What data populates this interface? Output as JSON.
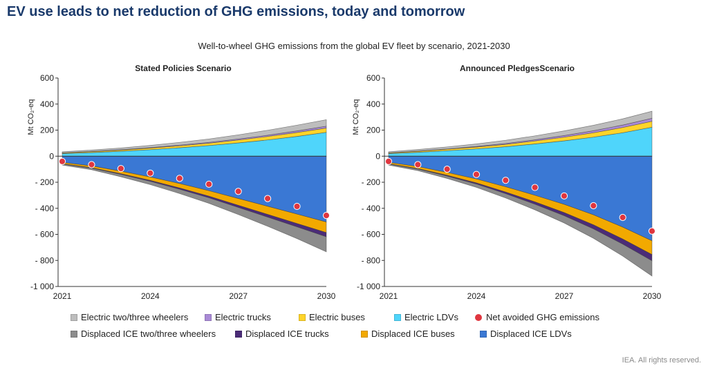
{
  "page": {
    "title": "EV use leads to net reduction of GHG emissions, today and tomorrow",
    "subtitle": "Well-to-wheel GHG emissions from the global EV fleet by scenario, 2021-2030",
    "source": "IEA. All rights reserved."
  },
  "colors": {
    "Electric two/three wheelers": "#bdbdbd",
    "Electric trucks": "#a98ad6",
    "Electric buses": "#ffd42a",
    "Electric LDVs": "#4fd5fb",
    "Displaced ICE two/three wheelers": "#8c8c8c",
    "Displaced ICE trucks": "#4b2c78",
    "Displaced ICE buses": "#f2a900",
    "Displaced ICE LDVs": "#3a78d4",
    "Net avoided GHG emissions": "#e0363f"
  },
  "legend": {
    "row1": [
      "Electric two/three wheelers",
      "Electric trucks",
      "Electric buses",
      "Electric LDVs",
      "Net avoided GHG emissions"
    ],
    "row2": [
      "Displaced ICE two/three wheelers",
      "Displaced ICE trucks",
      "Displaced ICE buses",
      "Displaced ICE LDVs"
    ]
  },
  "chart_data": [
    {
      "type": "area",
      "title": "Stated Policies Scenario",
      "ylabel": "Mt CO₂-eq",
      "x": [
        2021,
        2022,
        2023,
        2024,
        2025,
        2026,
        2027,
        2028,
        2029,
        2030
      ],
      "xticks": [
        "2021",
        "2024",
        "2027",
        "2030"
      ],
      "ylim": [
        -1000,
        600
      ],
      "yticks": [
        "600",
        "400",
        "200",
        "0",
        "- 200",
        "- 400",
        "- 600",
        "- 800",
        "-1 000"
      ],
      "ytick_values": [
        600,
        400,
        200,
        0,
        -200,
        -400,
        -600,
        -800,
        -1000
      ],
      "positive_series": [
        {
          "name": "Electric LDVs",
          "values": [
            20,
            28,
            38,
            50,
            65,
            82,
            102,
            125,
            152,
            183
          ]
        },
        {
          "name": "Electric buses",
          "values": [
            5,
            7,
            9,
            12,
            15,
            18,
            22,
            26,
            30,
            33
          ]
        },
        {
          "name": "Electric trucks",
          "values": [
            1,
            2,
            3,
            4,
            5,
            6,
            8,
            10,
            12,
            14
          ]
        },
        {
          "name": "Electric two/three wheelers",
          "values": [
            8,
            10,
            13,
            17,
            21,
            26,
            32,
            38,
            44,
            50
          ]
        }
      ],
      "negative_series": [
        {
          "name": "Displaced ICE LDVs",
          "values": [
            -48,
            -75,
            -115,
            -160,
            -210,
            -265,
            -325,
            -385,
            -445,
            -505
          ]
        },
        {
          "name": "Displaced ICE buses",
          "values": [
            -10,
            -14,
            -20,
            -26,
            -34,
            -42,
            -52,
            -62,
            -72,
            -82
          ]
        },
        {
          "name": "Displaced ICE trucks",
          "values": [
            -2,
            -3,
            -5,
            -7,
            -10,
            -13,
            -17,
            -21,
            -26,
            -32
          ]
        },
        {
          "name": "Displaced ICE two/three wheelers",
          "values": [
            -8,
            -12,
            -18,
            -25,
            -33,
            -42,
            -54,
            -70,
            -90,
            -115
          ]
        }
      ],
      "net": [
        -40,
        -65,
        -95,
        -130,
        -170,
        -215,
        -270,
        -325,
        -385,
        -455
      ]
    },
    {
      "type": "area",
      "title": "Announced PledgesScenario",
      "ylabel": "Mt CO₂-eq",
      "x": [
        2021,
        2022,
        2023,
        2024,
        2025,
        2026,
        2027,
        2028,
        2029,
        2030
      ],
      "xticks": [
        "2021",
        "2024",
        "2027",
        "2030"
      ],
      "ylim": [
        -1000,
        600
      ],
      "yticks": [
        "600",
        "400",
        "200",
        "0",
        "- 200",
        "- 400",
        "- 600",
        "- 800",
        "-1 000"
      ],
      "ytick_values": [
        600,
        400,
        200,
        0,
        -200,
        -400,
        -600,
        -800,
        -1000
      ],
      "positive_series": [
        {
          "name": "Electric LDVs",
          "values": [
            20,
            30,
            42,
            56,
            73,
            94,
            118,
            146,
            180,
            222
          ]
        },
        {
          "name": "Electric buses",
          "values": [
            5,
            8,
            11,
            14,
            18,
            23,
            28,
            34,
            40,
            46
          ]
        },
        {
          "name": "Electric trucks",
          "values": [
            1,
            2,
            3,
            5,
            7,
            9,
            12,
            15,
            19,
            23
          ]
        },
        {
          "name": "Electric two/three wheelers",
          "values": [
            8,
            11,
            15,
            19,
            24,
            30,
            36,
            42,
            48,
            54
          ]
        }
      ],
      "negative_series": [
        {
          "name": "Displaced ICE LDVs",
          "values": [
            -48,
            -80,
            -125,
            -175,
            -235,
            -300,
            -370,
            -450,
            -545,
            -650
          ]
        },
        {
          "name": "Displaced ICE buses",
          "values": [
            -10,
            -15,
            -22,
            -30,
            -40,
            -51,
            -63,
            -77,
            -91,
            -105
          ]
        },
        {
          "name": "Displaced ICE trucks",
          "values": [
            -2,
            -4,
            -6,
            -9,
            -13,
            -18,
            -24,
            -31,
            -39,
            -48
          ]
        },
        {
          "name": "Displaced ICE two/three wheelers",
          "values": [
            -8,
            -12,
            -18,
            -25,
            -33,
            -43,
            -56,
            -72,
            -92,
            -117
          ]
        }
      ],
      "net": [
        -40,
        -65,
        -100,
        -140,
        -185,
        -240,
        -305,
        -380,
        -470,
        -575
      ]
    }
  ]
}
